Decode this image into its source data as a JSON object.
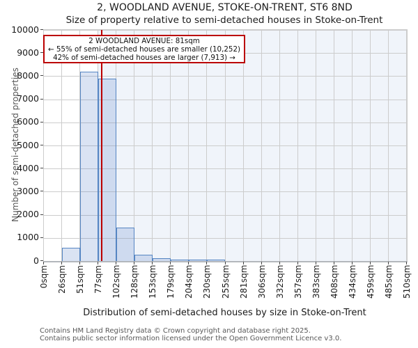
{
  "title": "2, WOODLAND AVENUE, STOKE-ON-TRENT, ST6 8ND",
  "subtitle": "Size of property relative to semi-detached houses in Stoke-on-Trent",
  "chart_data": {
    "type": "bar",
    "title": "2, WOODLAND AVENUE, STOKE-ON-TRENT, ST6 8ND",
    "subtitle": "Size of property relative to semi-detached houses in Stoke-on-Trent",
    "xlabel": "Distribution of semi-detached houses by size in Stoke-on-Trent",
    "ylabel": "Number of semi-detached properties",
    "xlim_sqm": [
      0,
      510
    ],
    "ylim": [
      0,
      10000
    ],
    "grid": true,
    "y_ticks": [
      0,
      1000,
      2000,
      3000,
      4000,
      5000,
      6000,
      7000,
      8000,
      9000,
      10000
    ],
    "x_tick_labels": [
      "0sqm",
      "26sqm",
      "51sqm",
      "77sqm",
      "102sqm",
      "128sqm",
      "153sqm",
      "179sqm",
      "204sqm",
      "230sqm",
      "255sqm",
      "281sqm",
      "306sqm",
      "332sqm",
      "357sqm",
      "383sqm",
      "408sqm",
      "434sqm",
      "459sqm",
      "485sqm",
      "510sqm"
    ],
    "bin_edges_sqm": [
      0,
      25.5,
      51,
      76.5,
      102,
      127.5,
      153,
      178.5,
      204,
      229.5,
      255,
      280.5,
      306,
      331.5,
      357,
      382.5,
      408,
      433.5,
      459,
      484.5,
      510
    ],
    "counts": [
      0,
      570,
      8200,
      7900,
      1450,
      270,
      110,
      60,
      55,
      55,
      0,
      0,
      0,
      0,
      0,
      0,
      0,
      0,
      0,
      0
    ],
    "marker": {
      "value_sqm": 81,
      "label": "2 WOODLAND AVENUE: 81sqm"
    },
    "highlight_span_sqm": [
      76.5,
      510
    ],
    "annotation": {
      "line1": "2 WOODLAND AVENUE: 81sqm",
      "line2": "← 55% of semi-detached houses are smaller (10,252)",
      "line3": "42% of semi-detached houses are larger (7,913) →"
    },
    "colors": {
      "bar_fill": "rgba(70,114,196,0.2)",
      "bar_edge": "#5585c2",
      "marker_line": "#bb0000",
      "annotation_border": "#bb0000",
      "highlight_fill": "rgba(70,114,196,0.08)",
      "grid": "#cccccc"
    }
  },
  "footer": {
    "line1": "Contains HM Land Registry data © Crown copyright and database right 2025.",
    "line2": "Contains public sector information licensed under the Open Government Licence v3.0."
  }
}
